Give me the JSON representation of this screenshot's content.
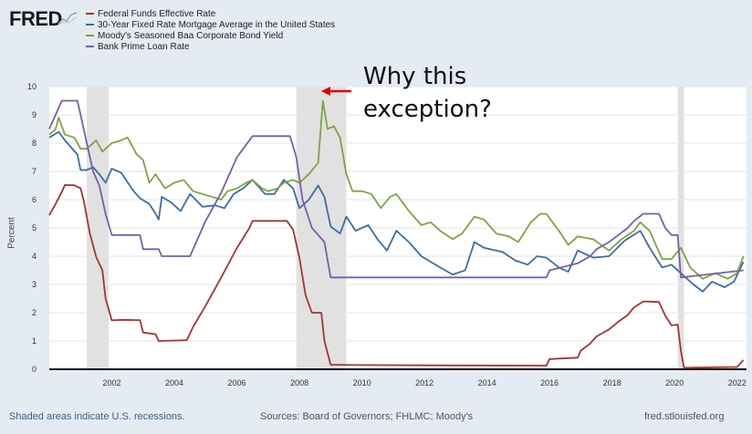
{
  "header": {
    "logo_text": "FRED",
    "logo_icon": "sparkline-icon"
  },
  "annotation": {
    "line1": "Why this",
    "line2": "exception?",
    "arrow_color": "#e00000"
  },
  "footer": {
    "left": "Shaded areas indicate U.S. recessions.",
    "center": "Sources: Board of Governors; FHLMC; Moody's",
    "right": "fred.stlouisfed.org"
  },
  "chart_data": {
    "type": "line",
    "ylabel": "Percent",
    "xlim": [
      2000,
      2022.3
    ],
    "ylim": [
      0,
      10
    ],
    "x_ticks": [
      2002,
      2004,
      2006,
      2008,
      2010,
      2012,
      2014,
      2016,
      2018,
      2020,
      2022
    ],
    "y_ticks": [
      0,
      1,
      2,
      3,
      4,
      5,
      6,
      7,
      8,
      9,
      10
    ],
    "grid": true,
    "legend_position": "top-left",
    "recessions": [
      [
        2001.2,
        2001.9
      ],
      [
        2007.9,
        2009.5
      ],
      [
        2020.1,
        2020.3
      ]
    ],
    "series": [
      {
        "name": "Federal Funds Effective Rate",
        "color": "#a83232",
        "points": [
          [
            2000.0,
            5.45
          ],
          [
            2000.2,
            5.85
          ],
          [
            2000.4,
            6.27
          ],
          [
            2000.5,
            6.52
          ],
          [
            2000.8,
            6.51
          ],
          [
            2001.0,
            6.4
          ],
          [
            2001.1,
            5.98
          ],
          [
            2001.3,
            4.8
          ],
          [
            2001.5,
            3.97
          ],
          [
            2001.7,
            3.5
          ],
          [
            2001.8,
            2.5
          ],
          [
            2002.0,
            1.73
          ],
          [
            2002.3,
            1.75
          ],
          [
            2002.9,
            1.74
          ],
          [
            2003.0,
            1.3
          ],
          [
            2003.4,
            1.24
          ],
          [
            2003.5,
            1.0
          ],
          [
            2004.4,
            1.03
          ],
          [
            2004.6,
            1.5
          ],
          [
            2005.0,
            2.25
          ],
          [
            2005.5,
            3.25
          ],
          [
            2006.0,
            4.29
          ],
          [
            2006.4,
            5.0
          ],
          [
            2006.5,
            5.25
          ],
          [
            2007.6,
            5.25
          ],
          [
            2007.8,
            4.94
          ],
          [
            2008.0,
            3.94
          ],
          [
            2008.2,
            2.61
          ],
          [
            2008.4,
            2.0
          ],
          [
            2008.7,
            2.0
          ],
          [
            2008.8,
            1.0
          ],
          [
            2009.0,
            0.16
          ],
          [
            2010.0,
            0.15
          ],
          [
            2012.0,
            0.14
          ],
          [
            2015.9,
            0.13
          ],
          [
            2016.0,
            0.36
          ],
          [
            2016.9,
            0.41
          ],
          [
            2017.0,
            0.66
          ],
          [
            2017.3,
            0.91
          ],
          [
            2017.5,
            1.16
          ],
          [
            2017.9,
            1.41
          ],
          [
            2018.2,
            1.68
          ],
          [
            2018.5,
            1.92
          ],
          [
            2018.7,
            2.19
          ],
          [
            2019.0,
            2.4
          ],
          [
            2019.5,
            2.38
          ],
          [
            2019.7,
            1.9
          ],
          [
            2019.9,
            1.55
          ],
          [
            2020.1,
            1.58
          ],
          [
            2020.2,
            0.65
          ],
          [
            2020.3,
            0.05
          ],
          [
            2022.0,
            0.08
          ],
          [
            2022.2,
            0.33
          ]
        ]
      },
      {
        "name": "30-Year Fixed Rate Mortgage Average in the United States",
        "color": "#3a6ea5",
        "points": [
          [
            2000.0,
            8.2
          ],
          [
            2000.3,
            8.4
          ],
          [
            2000.5,
            8.1
          ],
          [
            2000.9,
            7.6
          ],
          [
            2001.0,
            7.05
          ],
          [
            2001.2,
            7.05
          ],
          [
            2001.4,
            7.15
          ],
          [
            2001.6,
            6.9
          ],
          [
            2001.8,
            6.6
          ],
          [
            2002.0,
            7.1
          ],
          [
            2002.3,
            6.95
          ],
          [
            2002.7,
            6.3
          ],
          [
            2002.9,
            6.05
          ],
          [
            2003.2,
            5.85
          ],
          [
            2003.4,
            5.5
          ],
          [
            2003.5,
            5.3
          ],
          [
            2003.6,
            6.1
          ],
          [
            2003.9,
            5.9
          ],
          [
            2004.2,
            5.6
          ],
          [
            2004.5,
            6.2
          ],
          [
            2004.9,
            5.75
          ],
          [
            2005.3,
            5.8
          ],
          [
            2005.6,
            5.7
          ],
          [
            2005.9,
            6.2
          ],
          [
            2006.2,
            6.4
          ],
          [
            2006.5,
            6.7
          ],
          [
            2006.9,
            6.2
          ],
          [
            2007.2,
            6.2
          ],
          [
            2007.5,
            6.7
          ],
          [
            2007.8,
            6.4
          ],
          [
            2008.0,
            5.7
          ],
          [
            2008.3,
            6.0
          ],
          [
            2008.6,
            6.5
          ],
          [
            2008.8,
            6.1
          ],
          [
            2009.0,
            5.05
          ],
          [
            2009.3,
            4.8
          ],
          [
            2009.5,
            5.4
          ],
          [
            2009.8,
            4.9
          ],
          [
            2010.2,
            5.1
          ],
          [
            2010.5,
            4.6
          ],
          [
            2010.8,
            4.2
          ],
          [
            2011.1,
            4.9
          ],
          [
            2011.5,
            4.5
          ],
          [
            2011.9,
            4.0
          ],
          [
            2012.5,
            3.6
          ],
          [
            2012.9,
            3.35
          ],
          [
            2013.3,
            3.5
          ],
          [
            2013.6,
            4.5
          ],
          [
            2013.9,
            4.3
          ],
          [
            2014.5,
            4.15
          ],
          [
            2014.9,
            3.85
          ],
          [
            2015.3,
            3.7
          ],
          [
            2015.6,
            4.0
          ],
          [
            2015.9,
            3.95
          ],
          [
            2016.3,
            3.6
          ],
          [
            2016.6,
            3.45
          ],
          [
            2016.9,
            4.2
          ],
          [
            2017.4,
            3.95
          ],
          [
            2017.9,
            4.0
          ],
          [
            2018.4,
            4.55
          ],
          [
            2018.9,
            4.9
          ],
          [
            2019.2,
            4.3
          ],
          [
            2019.6,
            3.6
          ],
          [
            2019.9,
            3.7
          ],
          [
            2020.3,
            3.3
          ],
          [
            2020.6,
            3.0
          ],
          [
            2020.9,
            2.75
          ],
          [
            2021.2,
            3.1
          ],
          [
            2021.6,
            2.9
          ],
          [
            2021.9,
            3.1
          ],
          [
            2022.2,
            3.8
          ]
        ]
      },
      {
        "name": "Moody's Seasoned Baa Corporate Bond Yield",
        "color": "#7ea441",
        "points": [
          [
            2000.0,
            8.3
          ],
          [
            2000.2,
            8.5
          ],
          [
            2000.3,
            8.9
          ],
          [
            2000.5,
            8.3
          ],
          [
            2000.8,
            8.2
          ],
          [
            2001.0,
            7.8
          ],
          [
            2001.2,
            7.8
          ],
          [
            2001.5,
            8.1
          ],
          [
            2001.7,
            7.7
          ],
          [
            2002.0,
            8.0
          ],
          [
            2002.3,
            8.1
          ],
          [
            2002.5,
            8.2
          ],
          [
            2002.8,
            7.6
          ],
          [
            2003.0,
            7.4
          ],
          [
            2003.2,
            6.6
          ],
          [
            2003.4,
            6.9
          ],
          [
            2003.7,
            6.4
          ],
          [
            2004.0,
            6.6
          ],
          [
            2004.3,
            6.7
          ],
          [
            2004.6,
            6.3
          ],
          [
            2004.9,
            6.2
          ],
          [
            2005.2,
            6.1
          ],
          [
            2005.5,
            6.0
          ],
          [
            2005.7,
            6.3
          ],
          [
            2006.0,
            6.4
          ],
          [
            2006.3,
            6.6
          ],
          [
            2006.5,
            6.7
          ],
          [
            2006.8,
            6.4
          ],
          [
            2007.0,
            6.3
          ],
          [
            2007.3,
            6.4
          ],
          [
            2007.5,
            6.6
          ],
          [
            2007.8,
            6.7
          ],
          [
            2008.0,
            6.6
          ],
          [
            2008.3,
            6.9
          ],
          [
            2008.6,
            7.3
          ],
          [
            2008.75,
            9.5
          ],
          [
            2008.9,
            8.5
          ],
          [
            2009.1,
            8.6
          ],
          [
            2009.3,
            8.2
          ],
          [
            2009.5,
            6.9
          ],
          [
            2009.7,
            6.3
          ],
          [
            2010.0,
            6.3
          ],
          [
            2010.3,
            6.2
          ],
          [
            2010.6,
            5.7
          ],
          [
            2010.9,
            6.1
          ],
          [
            2011.1,
            6.2
          ],
          [
            2011.5,
            5.6
          ],
          [
            2011.9,
            5.1
          ],
          [
            2012.2,
            5.2
          ],
          [
            2012.5,
            4.9
          ],
          [
            2012.9,
            4.6
          ],
          [
            2013.2,
            4.8
          ],
          [
            2013.6,
            5.4
          ],
          [
            2013.9,
            5.3
          ],
          [
            2014.3,
            4.8
          ],
          [
            2014.7,
            4.7
          ],
          [
            2015.0,
            4.5
          ],
          [
            2015.4,
            5.2
          ],
          [
            2015.7,
            5.5
          ],
          [
            2015.9,
            5.5
          ],
          [
            2016.3,
            4.9
          ],
          [
            2016.6,
            4.4
          ],
          [
            2016.9,
            4.7
          ],
          [
            2017.4,
            4.6
          ],
          [
            2017.9,
            4.2
          ],
          [
            2018.3,
            4.6
          ],
          [
            2018.7,
            4.9
          ],
          [
            2018.9,
            5.2
          ],
          [
            2019.2,
            4.9
          ],
          [
            2019.6,
            3.9
          ],
          [
            2019.9,
            3.9
          ],
          [
            2020.2,
            4.3
          ],
          [
            2020.5,
            3.6
          ],
          [
            2020.9,
            3.2
          ],
          [
            2021.3,
            3.4
          ],
          [
            2021.7,
            3.2
          ],
          [
            2022.0,
            3.4
          ],
          [
            2022.2,
            4.0
          ]
        ]
      },
      {
        "name": "Bank Prime Loan Rate",
        "color": "#7a5ea8",
        "points": [
          [
            2000.0,
            8.5
          ],
          [
            2000.2,
            9.0
          ],
          [
            2000.4,
            9.5
          ],
          [
            2000.9,
            9.5
          ],
          [
            2001.0,
            9.0
          ],
          [
            2001.2,
            8.0
          ],
          [
            2001.4,
            7.0
          ],
          [
            2001.6,
            6.5
          ],
          [
            2001.8,
            5.5
          ],
          [
            2002.0,
            4.75
          ],
          [
            2002.9,
            4.75
          ],
          [
            2003.0,
            4.25
          ],
          [
            2003.5,
            4.25
          ],
          [
            2003.6,
            4.0
          ],
          [
            2004.5,
            4.0
          ],
          [
            2005.0,
            5.25
          ],
          [
            2005.5,
            6.25
          ],
          [
            2006.0,
            7.5
          ],
          [
            2006.5,
            8.25
          ],
          [
            2007.7,
            8.25
          ],
          [
            2007.9,
            7.5
          ],
          [
            2008.1,
            6.0
          ],
          [
            2008.4,
            5.0
          ],
          [
            2008.8,
            4.5
          ],
          [
            2009.0,
            3.25
          ],
          [
            2015.9,
            3.25
          ],
          [
            2016.0,
            3.5
          ],
          [
            2016.9,
            3.75
          ],
          [
            2017.3,
            4.0
          ],
          [
            2017.5,
            4.25
          ],
          [
            2017.9,
            4.5
          ],
          [
            2018.2,
            4.75
          ],
          [
            2018.5,
            5.0
          ],
          [
            2018.7,
            5.25
          ],
          [
            2019.0,
            5.5
          ],
          [
            2019.5,
            5.5
          ],
          [
            2019.7,
            5.0
          ],
          [
            2019.9,
            4.75
          ],
          [
            2020.1,
            4.75
          ],
          [
            2020.2,
            3.25
          ],
          [
            2022.2,
            3.5
          ]
        ]
      }
    ]
  }
}
